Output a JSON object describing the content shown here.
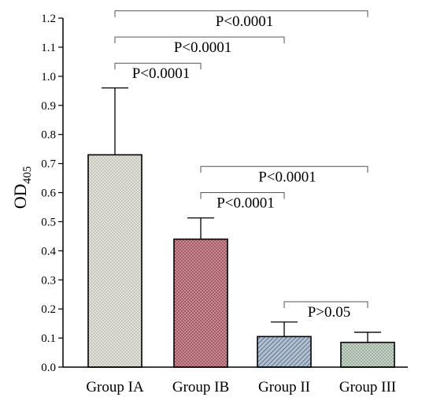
{
  "chart_data": {
    "type": "bar",
    "title": "",
    "xlabel": "",
    "ylabel": "OD",
    "ylabel_subscript": "405",
    "ylim": [
      0,
      1.2
    ],
    "yticks": [
      "0.0",
      "0.1",
      "0.2",
      "0.3",
      "0.4",
      "0.5",
      "0.6",
      "0.7",
      "0.8",
      "0.9",
      "1.0",
      "1.1",
      "1.2"
    ],
    "grid": false,
    "legend": "none",
    "categories": [
      "Group IA",
      "Group IB",
      "Group II",
      "Group III"
    ],
    "values": [
      0.73,
      0.44,
      0.105,
      0.085
    ],
    "error_upper": [
      0.96,
      0.513,
      0.155,
      0.12
    ],
    "bar_patterns": [
      "dots-gray",
      "dots-maroon",
      "diagonal-blue",
      "dots-green"
    ],
    "colors": {
      "group_ia": "#d9d9cf",
      "group_ib": "#b56d78",
      "group_ii": "#6f86a3",
      "group_iii": "#a8b9a8",
      "axis": "#000000",
      "bracket": "#555555"
    },
    "significance": [
      {
        "from": 0,
        "to": 3,
        "y": 1.225,
        "label": "P<0.0001"
      },
      {
        "from": 0,
        "to": 2,
        "y": 1.135,
        "label": "P<0.0001"
      },
      {
        "from": 0,
        "to": 1,
        "y": 1.045,
        "label": "P<0.0001"
      },
      {
        "from": 1,
        "to": 3,
        "y": 0.69,
        "label": "P<0.0001"
      },
      {
        "from": 1,
        "to": 2,
        "y": 0.6,
        "label": "P<0.0001"
      },
      {
        "from": 2,
        "to": 3,
        "y": 0.225,
        "label": "P>0.05"
      }
    ]
  }
}
